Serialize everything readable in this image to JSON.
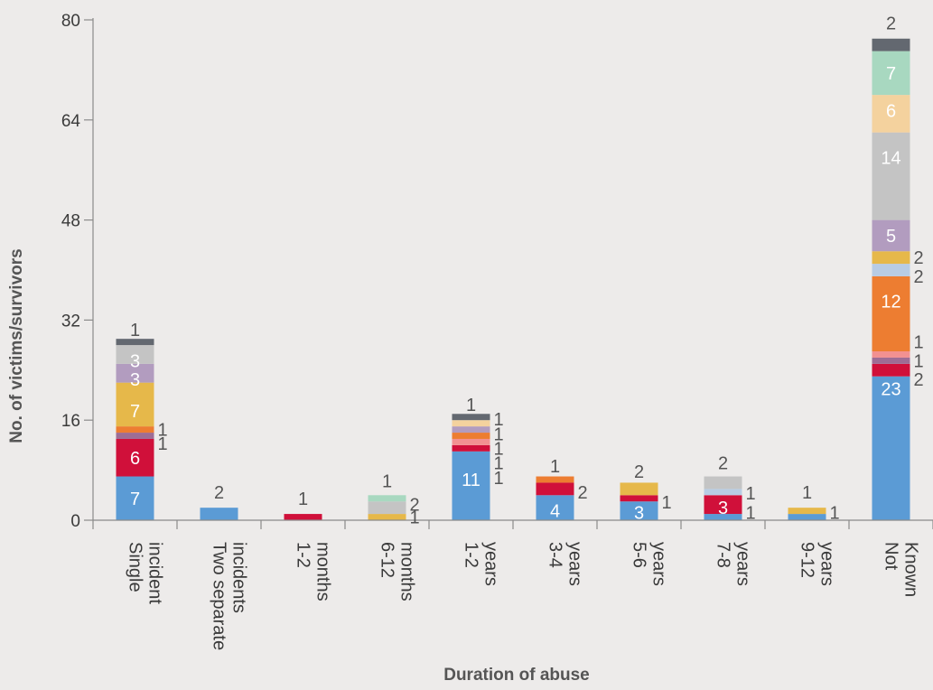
{
  "chart_data": {
    "type": "bar",
    "stacked": true,
    "xlabel": "Duration of abuse",
    "ylabel": "No. of victims/survivors",
    "ylim": [
      0,
      80
    ],
    "yticks": [
      0,
      16,
      32,
      48,
      64,
      80
    ],
    "grid": false,
    "categories": [
      [
        "Single",
        "incident"
      ],
      [
        "Two separate",
        "incidents"
      ],
      [
        "1-2",
        "months"
      ],
      [
        "6-12",
        "months"
      ],
      [
        "1-2",
        "years"
      ],
      [
        "3-4",
        "years"
      ],
      [
        "5-6",
        "years"
      ],
      [
        "7-8",
        "years"
      ],
      [
        "9-12",
        "years"
      ],
      [
        "Not",
        "Known"
      ]
    ],
    "colors": [
      "#5b9bd5",
      "#b8cce4",
      "#d0103a",
      "#f29191",
      "#ed7d31",
      "#9e6d95",
      "#e6b84a",
      "#f4d29e",
      "#b29cbf",
      "#c4c4c4",
      "#a8d8c0",
      "#636870"
    ],
    "stacks": [
      [
        [
          7,
          0
        ],
        [
          6,
          2
        ],
        [
          1,
          5
        ],
        [
          1,
          4
        ],
        [
          7,
          6
        ],
        [
          3,
          8
        ],
        [
          3,
          9
        ],
        [
          1,
          11
        ]
      ],
      [
        [
          2,
          0
        ]
      ],
      [
        [
          1,
          2
        ]
      ],
      [
        [
          1,
          6
        ],
        [
          2,
          9
        ],
        [
          1,
          10
        ]
      ],
      [
        [
          11,
          0
        ],
        [
          1,
          2
        ],
        [
          1,
          3
        ],
        [
          1,
          4
        ],
        [
          1,
          8
        ],
        [
          1,
          7
        ],
        [
          1,
          11
        ]
      ],
      [
        [
          4,
          0
        ],
        [
          2,
          2
        ],
        [
          1,
          4
        ]
      ],
      [
        [
          3,
          0
        ],
        [
          1,
          2
        ],
        [
          2,
          6
        ]
      ],
      [
        [
          1,
          0
        ],
        [
          3,
          2
        ],
        [
          1,
          1
        ],
        [
          2,
          9
        ]
      ],
      [
        [
          1,
          0
        ],
        [
          1,
          6
        ]
      ],
      [
        [
          23,
          0
        ],
        [
          2,
          2
        ],
        [
          1,
          5
        ],
        [
          1,
          3
        ],
        [
          12,
          4
        ],
        [
          2,
          1
        ],
        [
          2,
          6
        ],
        [
          5,
          8
        ],
        [
          14,
          9
        ],
        [
          6,
          7
        ],
        [
          7,
          10
        ],
        [
          2,
          11
        ]
      ]
    ],
    "labels": [
      {
        "text": "7",
        "cat": 0,
        "y": 3.5,
        "pos": "in",
        "color": "#ffffff"
      },
      {
        "text": "6",
        "cat": 0,
        "y": 10,
        "pos": "in",
        "color": "#ffffff"
      },
      {
        "text": "1",
        "cat": 0,
        "y": 12.3,
        "pos": "right",
        "color": "#555555"
      },
      {
        "text": "1",
        "cat": 0,
        "y": 14.5,
        "pos": "right",
        "color": "#555555"
      },
      {
        "text": "7",
        "cat": 0,
        "y": 17.5,
        "pos": "in",
        "color": "#ffffff"
      },
      {
        "text": "3",
        "cat": 0,
        "y": 22.5,
        "pos": "in",
        "color": "#ffffff"
      },
      {
        "text": "3",
        "cat": 0,
        "y": 25.5,
        "pos": "in",
        "color": "#ffffff"
      },
      {
        "text": "1",
        "cat": 0,
        "y": 30.5,
        "pos": "top",
        "color": "#555555"
      },
      {
        "text": "2",
        "cat": 1,
        "y": 4.5,
        "pos": "top",
        "color": "#555555"
      },
      {
        "text": "1",
        "cat": 2,
        "y": 3.5,
        "pos": "top",
        "color": "#555555"
      },
      {
        "text": "1",
        "cat": 3,
        "y": 6.3,
        "pos": "top",
        "color": "#555555"
      },
      {
        "text": "2",
        "cat": 3,
        "y": 2.5,
        "pos": "right",
        "color": "#555555"
      },
      {
        "text": "1",
        "cat": 3,
        "y": 0.5,
        "pos": "right",
        "color": "#555555"
      },
      {
        "text": "11",
        "cat": 4,
        "y": 6.5,
        "pos": "in",
        "color": "#ffffff"
      },
      {
        "text": "1",
        "cat": 4,
        "y": 6.8,
        "pos": "right",
        "color": "#555555"
      },
      {
        "text": "1",
        "cat": 4,
        "y": 9.2,
        "pos": "right",
        "color": "#555555"
      },
      {
        "text": "1",
        "cat": 4,
        "y": 11.5,
        "pos": "right",
        "color": "#555555"
      },
      {
        "text": "1",
        "cat": 4,
        "y": 13.8,
        "pos": "right",
        "color": "#555555"
      },
      {
        "text": "1",
        "cat": 4,
        "y": 16.2,
        "pos": "right",
        "color": "#555555"
      },
      {
        "text": "1",
        "cat": 4,
        "y": 18.5,
        "pos": "top",
        "color": "#555555"
      },
      {
        "text": "4",
        "cat": 5,
        "y": 1.5,
        "pos": "in",
        "color": "#ffffff"
      },
      {
        "text": "2",
        "cat": 5,
        "y": 4.5,
        "pos": "right",
        "color": "#555555"
      },
      {
        "text": "1",
        "cat": 5,
        "y": 8.7,
        "pos": "top",
        "color": "#555555"
      },
      {
        "text": "3",
        "cat": 6,
        "y": 1.2,
        "pos": "in",
        "color": "#ffffff"
      },
      {
        "text": "1",
        "cat": 6,
        "y": 2.9,
        "pos": "right",
        "color": "#555555"
      },
      {
        "text": "2",
        "cat": 6,
        "y": 7.8,
        "pos": "top",
        "color": "#555555"
      },
      {
        "text": "3",
        "cat": 7,
        "y": 2,
        "pos": "in",
        "color": "#ffffff"
      },
      {
        "text": "1",
        "cat": 7,
        "y": 1.2,
        "pos": "right",
        "color": "#555555"
      },
      {
        "text": "1",
        "cat": 7,
        "y": 4.3,
        "pos": "right",
        "color": "#555555"
      },
      {
        "text": "2",
        "cat": 7,
        "y": 9.2,
        "pos": "top",
        "color": "#555555"
      },
      {
        "text": "1",
        "cat": 8,
        "y": 4.5,
        "pos": "top",
        "color": "#555555"
      },
      {
        "text": "1",
        "cat": 8,
        "y": 1.2,
        "pos": "right",
        "color": "#555555"
      },
      {
        "text": "23",
        "cat": 9,
        "y": 21,
        "pos": "in",
        "color": "#ffffff"
      },
      {
        "text": "2",
        "cat": 9,
        "y": 22.5,
        "pos": "right",
        "color": "#555555"
      },
      {
        "text": "1",
        "cat": 9,
        "y": 25.5,
        "pos": "right",
        "color": "#555555"
      },
      {
        "text": "1",
        "cat": 9,
        "y": 28.5,
        "pos": "right",
        "color": "#555555"
      },
      {
        "text": "12",
        "cat": 9,
        "y": 35,
        "pos": "in",
        "color": "#ffffff"
      },
      {
        "text": "2",
        "cat": 9,
        "y": 39,
        "pos": "right",
        "color": "#555555"
      },
      {
        "text": "2",
        "cat": 9,
        "y": 42,
        "pos": "right",
        "color": "#555555"
      },
      {
        "text": "5",
        "cat": 9,
        "y": 45.5,
        "pos": "in",
        "color": "#ffffff"
      },
      {
        "text": "14",
        "cat": 9,
        "y": 58,
        "pos": "in",
        "color": "#ffffff"
      },
      {
        "text": "6",
        "cat": 9,
        "y": 65.5,
        "pos": "in",
        "color": "#ffffff"
      },
      {
        "text": "7",
        "cat": 9,
        "y": 71.5,
        "pos": "in",
        "color": "#ffffff"
      },
      {
        "text": "2",
        "cat": 9,
        "y": 79.5,
        "pos": "top",
        "color": "#555555"
      }
    ]
  }
}
